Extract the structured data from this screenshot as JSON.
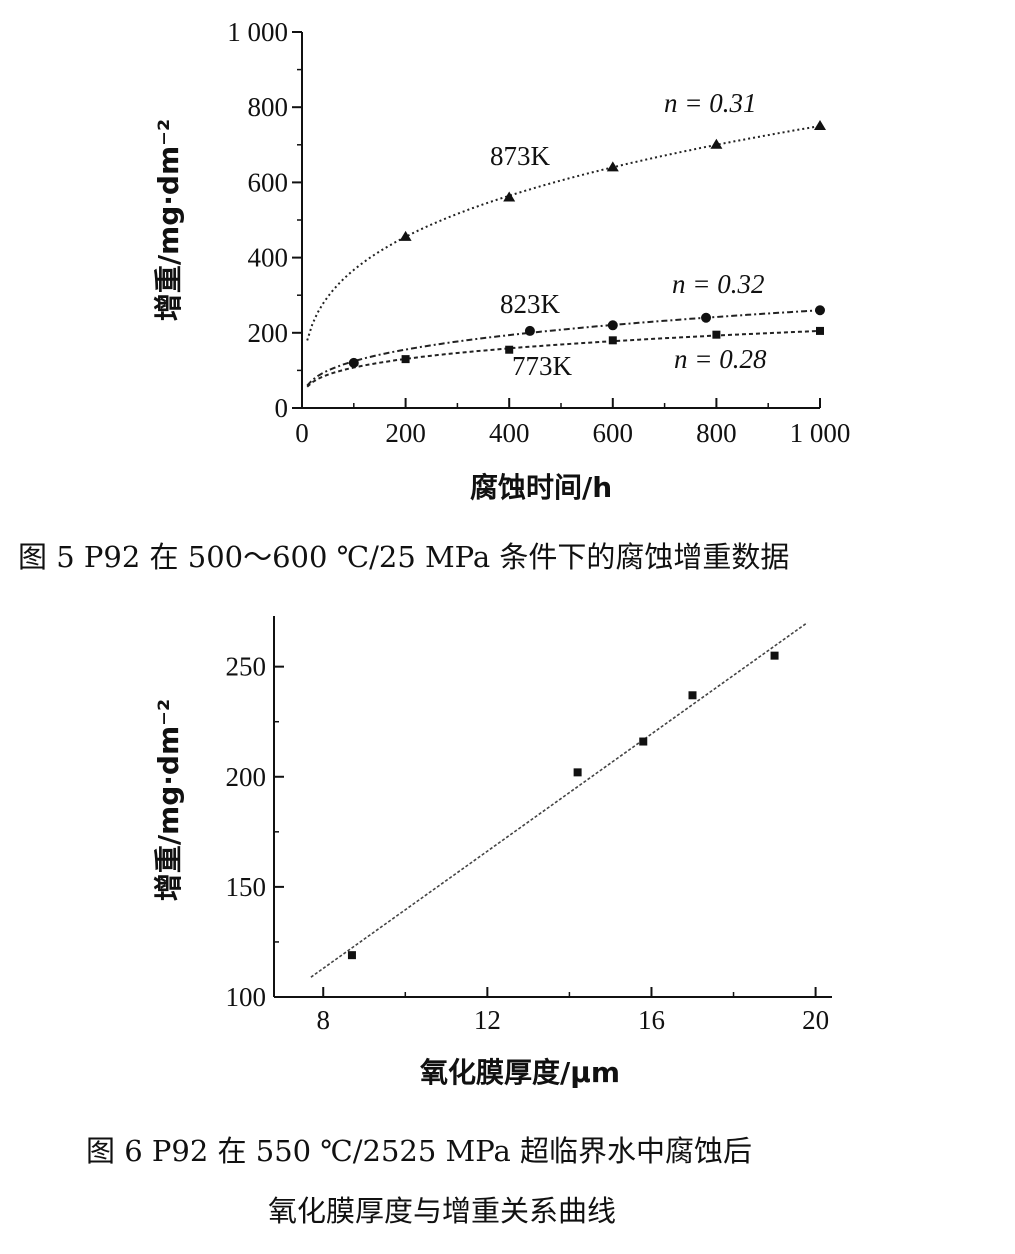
{
  "figure5": {
    "caption": "图 5   P92 在 500～600 ℃/25 MPa 条件下的腐蚀增重数据"
  },
  "figure6": {
    "caption_line1": "图 6   P92 在 550 ℃/2525 MPa 超临界水中腐蚀后",
    "caption_line2": "氧化膜厚度与增重关系曲线"
  },
  "chart_data": [
    {
      "type": "scatter",
      "xlabel": "腐蚀时间/h",
      "ylabel": "增重/mg·dm⁻²",
      "xlim": [
        0,
        1000
      ],
      "ylim": [
        0,
        1000
      ],
      "xticks": [
        "0",
        "200",
        "400",
        "600",
        "800",
        "1 000"
      ],
      "yticks": [
        "0",
        "200",
        "400",
        "600",
        "800",
        "1 000"
      ],
      "grid": false,
      "series": [
        {
          "name": "873K",
          "marker": "triangle",
          "n_label": "n = 0.31",
          "n": 0.31,
          "x": [
            200,
            400,
            600,
            800,
            1000
          ],
          "y": [
            455,
            560,
            640,
            700,
            750
          ]
        },
        {
          "name": "823K",
          "marker": "circle",
          "n_label": "n = 0.32",
          "n": 0.32,
          "x": [
            100,
            440,
            600,
            780,
            1000
          ],
          "y": [
            120,
            205,
            220,
            240,
            260
          ]
        },
        {
          "name": "773K",
          "marker": "square",
          "n_label": "n = 0.28",
          "n": 0.28,
          "x": [
            200,
            400,
            600,
            800,
            1000
          ],
          "y": [
            130,
            155,
            180,
            195,
            205
          ]
        }
      ]
    },
    {
      "type": "scatter",
      "xlabel": "氧化膜厚度/μm",
      "ylabel": "增重/mg·dm⁻²",
      "xlim": [
        6.8,
        20.4
      ],
      "ylim": [
        100,
        273
      ],
      "xticks": [
        "8",
        "12",
        "16",
        "20"
      ],
      "yticks": [
        "100",
        "150",
        "200",
        "250"
      ],
      "grid": false,
      "series": [
        {
          "marker": "square",
          "x": [
            8.7,
            14.2,
            15.8,
            17.0,
            19.0
          ],
          "y": [
            119,
            202,
            216,
            237,
            255
          ]
        }
      ],
      "fit_line": {
        "x": [
          7.7,
          19.8
        ],
        "y": [
          109,
          270
        ]
      }
    }
  ]
}
